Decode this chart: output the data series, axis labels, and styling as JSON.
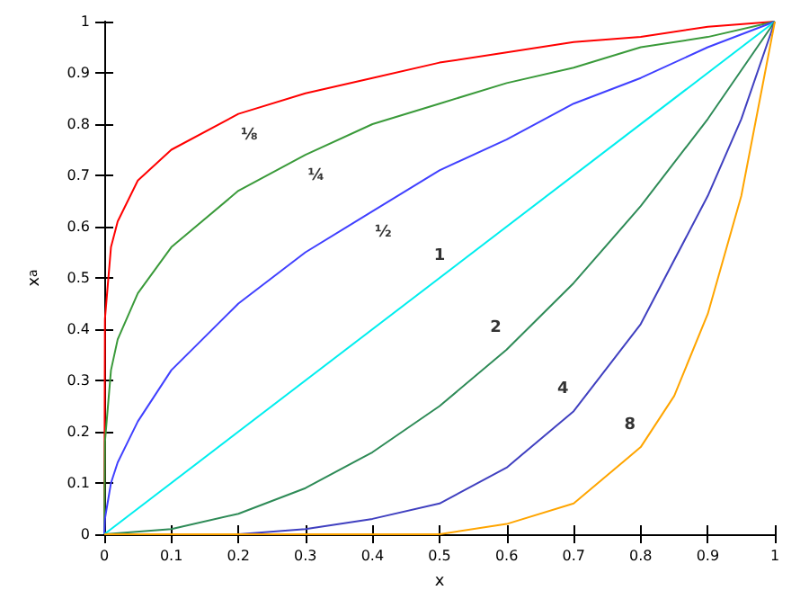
{
  "chart_data": {
    "type": "line",
    "xlabel": "x",
    "ylabel": "x$^{a}$",
    "xlim": [
      0,
      1
    ],
    "ylim": [
      0,
      1
    ],
    "xticks": [
      0,
      0.1,
      0.2,
      0.3,
      0.4,
      0.5,
      0.6,
      0.7,
      0.8,
      0.9,
      1
    ],
    "yticks": [
      0,
      0.1,
      0.2,
      0.3,
      0.4,
      0.5,
      0.6,
      0.7,
      0.8,
      0.9,
      1
    ],
    "grid": false,
    "marker": "none",
    "line_style": "solid",
    "series": [
      {
        "color": "#ff0000",
        "x": [
          0,
          0.001,
          0.01,
          0.02,
          0.05,
          0.1,
          0.2,
          0.3,
          0.4,
          0.5,
          0.6,
          0.7,
          0.8,
          0.9,
          1
        ],
        "values": [
          0,
          0.42,
          0.56,
          0.61,
          0.69,
          0.75,
          0.82,
          0.86,
          0.89,
          0.92,
          0.94,
          0.96,
          0.97,
          0.99,
          1
        ]
      },
      {
        "color": "#3a9a3a",
        "x": [
          0,
          0.001,
          0.01,
          0.02,
          0.05,
          0.1,
          0.2,
          0.3,
          0.4,
          0.5,
          0.6,
          0.7,
          0.8,
          0.9,
          1
        ],
        "values": [
          0,
          0.18,
          0.32,
          0.38,
          0.47,
          0.56,
          0.67,
          0.74,
          0.8,
          0.84,
          0.88,
          0.91,
          0.95,
          0.97,
          1
        ]
      },
      {
        "color": "#4040ff",
        "x": [
          0,
          0.001,
          0.01,
          0.02,
          0.05,
          0.1,
          0.2,
          0.3,
          0.4,
          0.5,
          0.6,
          0.7,
          0.8,
          0.9,
          1
        ],
        "values": [
          0,
          0.03,
          0.1,
          0.14,
          0.22,
          0.32,
          0.45,
          0.55,
          0.63,
          0.71,
          0.77,
          0.84,
          0.89,
          0.95,
          1
        ]
      },
      {
        "color": "#00eeee",
        "x": [
          0,
          1
        ],
        "values": [
          0,
          1
        ]
      },
      {
        "color": "#2e8b57",
        "x": [
          0,
          0.1,
          0.2,
          0.3,
          0.4,
          0.5,
          0.6,
          0.7,
          0.8,
          0.9,
          1
        ],
        "values": [
          0,
          0.01,
          0.04,
          0.09,
          0.16,
          0.25,
          0.36,
          0.49,
          0.64,
          0.81,
          1
        ]
      },
      {
        "color": "#4040c0",
        "x": [
          0,
          0.2,
          0.3,
          0.4,
          0.5,
          0.6,
          0.7,
          0.8,
          0.9,
          0.95,
          1
        ],
        "values": [
          0,
          0,
          0.01,
          0.03,
          0.06,
          0.13,
          0.24,
          0.41,
          0.66,
          0.81,
          1
        ]
      },
      {
        "color": "#ffa500",
        "x": [
          0,
          0.5,
          0.6,
          0.7,
          0.8,
          0.85,
          0.9,
          0.95,
          1
        ],
        "values": [
          0,
          0,
          0.02,
          0.06,
          0.17,
          0.27,
          0.43,
          0.66,
          1
        ]
      }
    ],
    "annotations": [
      {
        "text": "⅛",
        "x": 0.2,
        "y": 0.82
      },
      {
        "text": "¼",
        "x": 0.3,
        "y": 0.74
      },
      {
        "text": "½",
        "x": 0.4,
        "y": 0.63
      },
      {
        "text": "1",
        "x": 0.5,
        "y": 0.5
      },
      {
        "text": "2",
        "x": 0.6,
        "y": 0.36
      },
      {
        "text": "4",
        "x": 0.7,
        "y": 0.24
      },
      {
        "text": "8",
        "x": 0.8,
        "y": 0.17
      }
    ]
  }
}
